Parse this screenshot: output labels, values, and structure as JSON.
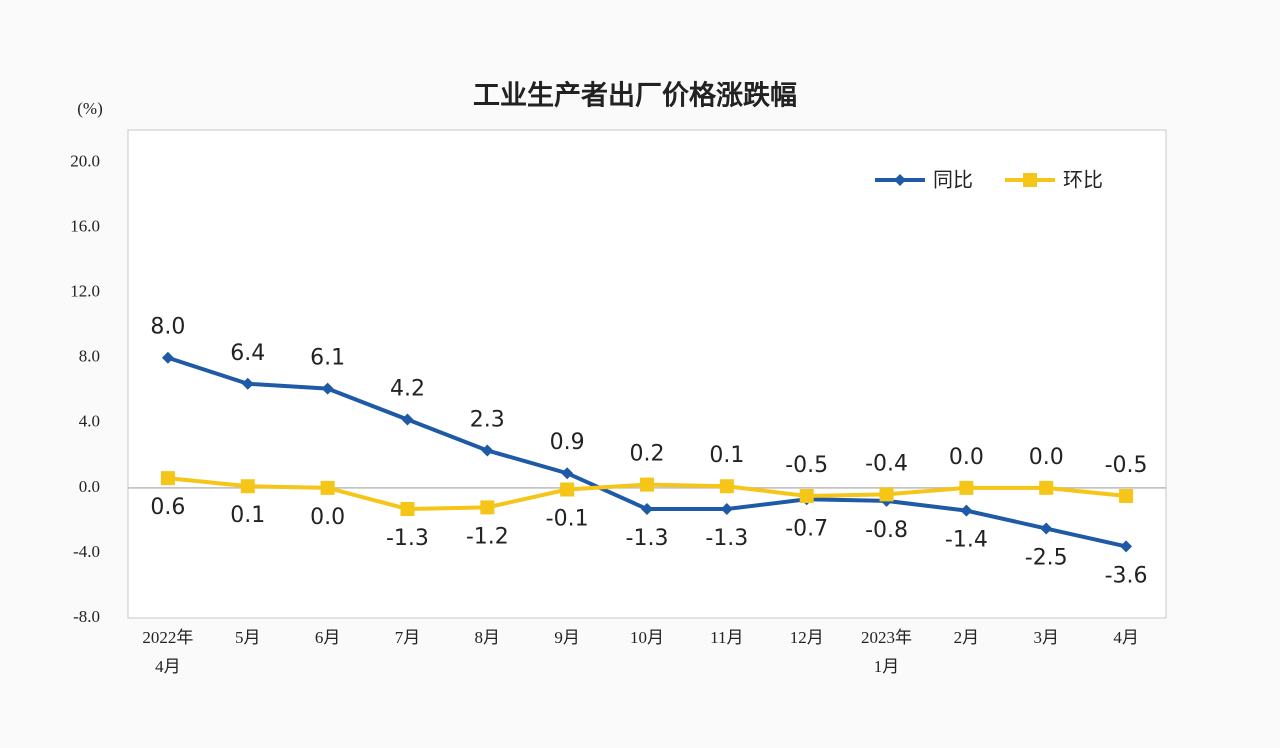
{
  "chart_data": {
    "type": "line",
    "title": "工业生产者出厂价格涨跌幅",
    "y_label": "(%)",
    "categories": [
      [
        "2022年",
        "4月"
      ],
      [
        "5月"
      ],
      [
        "6月"
      ],
      [
        "7月"
      ],
      [
        "8月"
      ],
      [
        "9月"
      ],
      [
        "10月"
      ],
      [
        "11月"
      ],
      [
        "12月"
      ],
      [
        "2023年",
        "1月"
      ],
      [
        "2月"
      ],
      [
        "3月"
      ],
      [
        "4月"
      ]
    ],
    "series": [
      {
        "name": "同比",
        "color": "#1f5aa6",
        "marker": "diamond",
        "values": [
          8.0,
          6.4,
          6.1,
          4.2,
          2.3,
          0.9,
          -1.3,
          -1.3,
          -0.7,
          -0.8,
          -1.4,
          -2.5,
          -3.6
        ],
        "value_labels": [
          "8.0",
          "6.4",
          "6.1",
          "4.2",
          "2.3",
          "0.9",
          "-1.3",
          "-1.3",
          "-0.7",
          "-0.8",
          "-1.4",
          "-2.5",
          "-3.6"
        ]
      },
      {
        "name": "环比",
        "color": "#f5c518",
        "marker": "square",
        "values": [
          0.6,
          0.1,
          0.0,
          -1.3,
          -1.2,
          -0.1,
          0.2,
          0.1,
          -0.5,
          -0.4,
          0.0,
          0.0,
          -0.5
        ],
        "value_labels": [
          "0.6",
          "0.1",
          "0.0",
          "-1.3",
          "-1.2",
          "-0.1",
          "0.2",
          "0.1",
          "-0.5",
          "-0.4",
          "0.0",
          "0.0",
          "-0.5"
        ]
      }
    ],
    "ylim": [
      -8,
      22
    ],
    "yticks": [
      {
        "value": -8,
        "label": "-8.0"
      },
      {
        "value": -4,
        "label": "-4.0"
      },
      {
        "value": 0,
        "label": "0.0"
      },
      {
        "value": 4,
        "label": "4.0"
      },
      {
        "value": 8,
        "label": "8.0"
      },
      {
        "value": 12,
        "label": "12.0"
      },
      {
        "value": 16,
        "label": "16.0"
      },
      {
        "value": 20,
        "label": "20.0"
      }
    ],
    "legend": "top-right"
  }
}
